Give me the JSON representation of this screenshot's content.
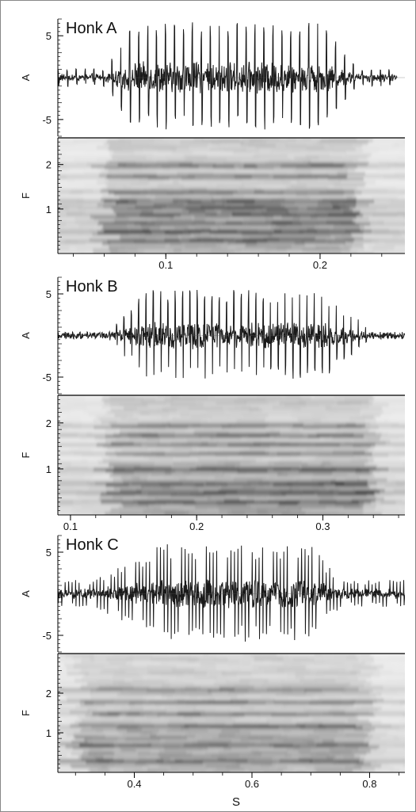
{
  "figure": {
    "xlabel": "S",
    "colors": {
      "wave": "#1a1a1a",
      "axis": "#000000",
      "text": "#111111",
      "frame": "#888888"
    }
  },
  "chart_data": [
    {
      "type": "waveform",
      "title": "Honk A",
      "ylabel": "A",
      "yticks": [
        5,
        -5
      ],
      "ylim": [
        -7,
        7
      ],
      "xlim": [
        0.03,
        0.255
      ],
      "envelope": {
        "start": 0.03,
        "end": 0.25,
        "rise_start": 0.06,
        "rise_end": 0.08,
        "fall_start": 0.2,
        "fall_end": 0.225,
        "peak_amp": 6.0,
        "base_amp": 1.0
      },
      "pulse_spacing": 0.0058
    },
    {
      "type": "heatmap",
      "ylabel": "F",
      "yticks": [
        2,
        1
      ],
      "ylim": [
        0,
        2.6
      ],
      "xlim": [
        0.03,
        0.255
      ],
      "xticks": [
        0.1,
        0.2
      ],
      "bands": [
        0.3,
        0.5,
        0.7,
        0.9,
        1.05,
        1.2,
        1.4,
        1.75,
        2.0
      ],
      "active": [
        0.06,
        0.225
      ]
    },
    {
      "type": "waveform",
      "title": "Honk B",
      "ylabel": "A",
      "yticks": [
        5,
        -5
      ],
      "ylim": [
        -7,
        7
      ],
      "xlim": [
        0.09,
        0.365
      ],
      "envelope": {
        "start": 0.09,
        "end": 0.365,
        "rise_start": 0.13,
        "rise_end": 0.16,
        "fall_start": 0.3,
        "fall_end": 0.34,
        "peak_amp": 5.0,
        "base_amp": 0.4
      },
      "pulse_spacing": 0.0058
    },
    {
      "type": "heatmap",
      "ylabel": "F",
      "yticks": [
        2,
        1
      ],
      "ylim": [
        0,
        2.6
      ],
      "xlim": [
        0.09,
        0.365
      ],
      "xticks": [
        0.1,
        0.2,
        0.3
      ],
      "bands": [
        0.3,
        0.5,
        0.7,
        1.0,
        1.35,
        1.55,
        1.75,
        1.95
      ],
      "active": [
        0.13,
        0.34
      ]
    },
    {
      "type": "waveform",
      "title": "Honk C",
      "ylabel": "A",
      "yticks": [
        5,
        -5
      ],
      "ylim": [
        -7,
        7
      ],
      "xlim": [
        0.27,
        0.86
      ],
      "envelope": {
        "start": 0.27,
        "end": 0.86,
        "rise_start": 0.33,
        "rise_end": 0.45,
        "fall_start": 0.7,
        "fall_end": 0.75,
        "peak_amp": 5.5,
        "base_amp": 1.5
      },
      "pulse_spacing": 0.006
    },
    {
      "type": "heatmap",
      "ylabel": "F",
      "yticks": [
        2,
        1
      ],
      "ylim": [
        0,
        3
      ],
      "xlim": [
        0.27,
        0.86
      ],
      "xticks": [
        0.4,
        0.6,
        0.8
      ],
      "bands": [
        0.3,
        0.7,
        1.2,
        1.5,
        1.8,
        2.1
      ],
      "active": [
        0.3,
        0.8
      ]
    }
  ]
}
